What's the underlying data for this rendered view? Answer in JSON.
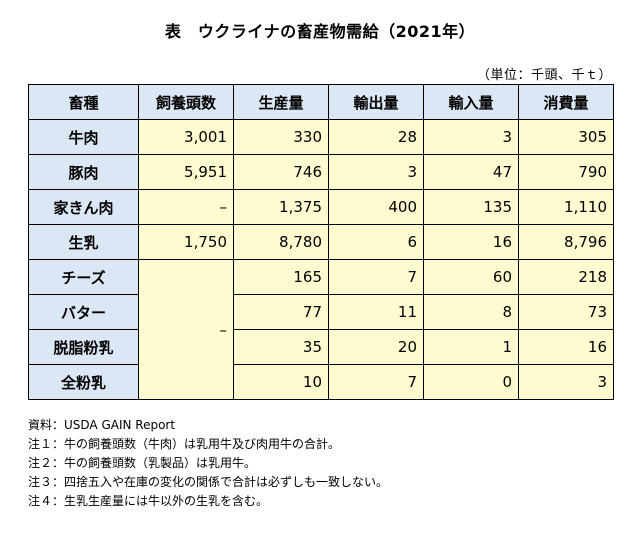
{
  "title": "表　ウクライナの畜産物需給（2021年）",
  "unit": "（単位：千頭、千ｔ）",
  "headers": [
    "畜種",
    "飼養頭数",
    "生産量",
    "輸出量",
    "輸入量",
    "消費量"
  ],
  "rows": [
    {
      "name": "牛肉",
      "head": "3,001",
      "prod": "330",
      "exp": "28",
      "imp": "3",
      "cons": "305"
    },
    {
      "name": "豚肉",
      "head": "5,951",
      "prod": "746",
      "exp": "3",
      "imp": "47",
      "cons": "790"
    },
    {
      "name": "家きん肉",
      "head": "–",
      "prod": "1,375",
      "exp": "400",
      "imp": "135",
      "cons": "1,110"
    },
    {
      "name": "生乳",
      "head": "1,750",
      "prod": "8,780",
      "exp": "6",
      "imp": "16",
      "cons": "8,796"
    },
    {
      "name": "チーズ",
      "prod": "165",
      "exp": "7",
      "imp": "60",
      "cons": "218"
    },
    {
      "name": "バター",
      "prod": "77",
      "exp": "11",
      "imp": "8",
      "cons": "73"
    },
    {
      "name": "脱脂粉乳",
      "prod": "35",
      "exp": "20",
      "imp": "1",
      "cons": "16"
    },
    {
      "name": "全粉乳",
      "prod": "10",
      "exp": "7",
      "imp": "0",
      "cons": "3"
    }
  ],
  "dairy_head": "–",
  "notes": [
    "資料：USDA GAIN Report",
    "注１：牛の飼養頭数（牛肉）は乳用牛及び肉用牛の合計。",
    "注２：牛の飼養頭数（乳製品）は乳用牛。",
    "注３：四捨五入や在庫の変化の関係で合計は必ずしも一致しない。",
    "注４：生乳生産量には牛以外の生乳を含む。"
  ]
}
